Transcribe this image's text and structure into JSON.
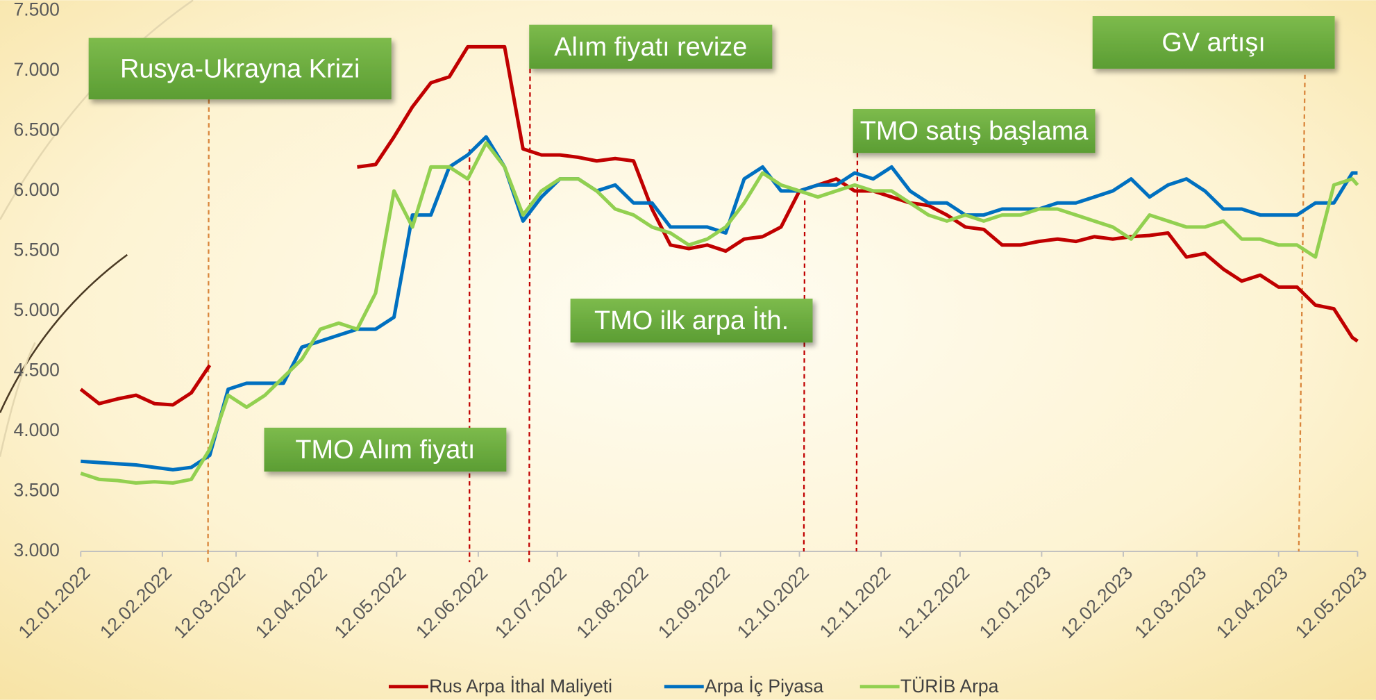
{
  "chart_data": {
    "type": "line",
    "x": [
      "12.01.2022",
      "19.01.2022",
      "26.01.2022",
      "02.02.2022",
      "09.02.2022",
      "16.02.2022",
      "23.02.2022",
      "02.03.2022",
      "09.03.2022",
      "16.03.2022",
      "23.03.2022",
      "30.03.2022",
      "06.04.2022",
      "13.04.2022",
      "20.04.2022",
      "27.04.2022",
      "04.05.2022",
      "11.05.2022",
      "18.05.2022",
      "25.05.2022",
      "01.06.2022",
      "08.06.2022",
      "15.06.2022",
      "22.06.2022",
      "29.06.2022",
      "06.07.2022",
      "13.07.2022",
      "20.07.2022",
      "27.07.2022",
      "03.08.2022",
      "10.08.2022",
      "17.08.2022",
      "24.08.2022",
      "31.08.2022",
      "07.09.2022",
      "14.09.2022",
      "21.09.2022",
      "28.09.2022",
      "05.10.2022",
      "12.10.2022",
      "19.10.2022",
      "26.10.2022",
      "02.11.2022",
      "09.11.2022",
      "16.11.2022",
      "23.11.2022",
      "30.11.2022",
      "07.12.2022",
      "14.12.2022",
      "21.12.2022",
      "28.12.2022",
      "04.01.2023",
      "11.01.2023",
      "18.01.2023",
      "25.01.2023",
      "01.02.2023",
      "08.02.2023",
      "15.02.2023",
      "22.02.2023",
      "01.03.2023",
      "08.03.2023",
      "15.03.2023",
      "22.03.2023",
      "29.03.2023",
      "05.04.2023",
      "12.04.2023",
      "19.04.2023",
      "26.04.2023",
      "03.05.2023",
      "10.05.2023",
      "12.05.2023"
    ],
    "series": [
      {
        "name": "Rus Arpa İthal Maliyeti",
        "color": "#c00000",
        "values": [
          4350,
          4230,
          4270,
          4300,
          4230,
          4220,
          4320,
          4550,
          null,
          null,
          null,
          null,
          null,
          null,
          null,
          6200,
          6220,
          6450,
          6700,
          6900,
          6950,
          7200,
          7200,
          7200,
          6350,
          6300,
          6300,
          6280,
          6250,
          6270,
          6250,
          5850,
          5550,
          5520,
          5550,
          5500,
          5600,
          5620,
          5700,
          6000,
          6050,
          6100,
          6000,
          6000,
          5950,
          5900,
          5880,
          5800,
          5700,
          5680,
          5550,
          5550,
          5580,
          5600,
          5580,
          5620,
          5600,
          5620,
          5630,
          5650,
          5450,
          5480,
          5350,
          5250,
          5300,
          5200,
          5200,
          5050,
          5020,
          4780,
          4750
        ]
      },
      {
        "name": "Arpa İç Piyasa",
        "color": "#0070c0",
        "values": [
          3750,
          3740,
          3730,
          3720,
          3700,
          3680,
          3700,
          3800,
          4350,
          4400,
          4400,
          4400,
          4700,
          4750,
          4800,
          4850,
          4850,
          4950,
          5800,
          5800,
          6200,
          6300,
          6450,
          6200,
          5750,
          5950,
          6100,
          6100,
          6000,
          6050,
          5900,
          5900,
          5700,
          5700,
          5700,
          5650,
          6100,
          6200,
          6000,
          6000,
          6050,
          6050,
          6150,
          6100,
          6200,
          6000,
          5900,
          5900,
          5800,
          5800,
          5850,
          5850,
          5850,
          5900,
          5900,
          5950,
          6000,
          6100,
          5950,
          6050,
          6100,
          6000,
          5850,
          5850,
          5800,
          5800,
          5800,
          5900,
          5900,
          6150,
          6150
        ]
      },
      {
        "name": "TÜRİB Arpa",
        "color": "#92d050",
        "values": [
          3650,
          3600,
          3590,
          3570,
          3580,
          3570,
          3600,
          3850,
          4300,
          4200,
          4300,
          4450,
          4600,
          4850,
          4900,
          4850,
          5150,
          6000,
          5700,
          6200,
          6200,
          6100,
          6400,
          6200,
          5800,
          6000,
          6100,
          6100,
          6000,
          5850,
          5800,
          5700,
          5650,
          5550,
          5600,
          5700,
          5900,
          6150,
          6050,
          6000,
          5950,
          6000,
          6050,
          6000,
          6000,
          5900,
          5800,
          5750,
          5800,
          5750,
          5800,
          5800,
          5850,
          5850,
          5800,
          5750,
          5700,
          5600,
          5800,
          5750,
          5700,
          5700,
          5750,
          5600,
          5600,
          5550,
          5550,
          5450,
          6050,
          6100,
          6050
        ]
      }
    ],
    "xlim": [
      "12.01.2022",
      "12.05.2023"
    ],
    "xticks": [
      "12.01.2022",
      "12.02.2022",
      "12.03.2022",
      "12.04.2022",
      "12.05.2022",
      "12.06.2022",
      "12.07.2022",
      "12.08.2022",
      "12.09.2022",
      "12.10.2022",
      "12.11.2022",
      "12.12.2022",
      "12.01.2023",
      "12.02.2023",
      "12.03.2023",
      "12.04.2023",
      "12.05.2023"
    ],
    "ylim": [
      3000,
      7500
    ],
    "yticks": [
      {
        "value": 3000,
        "label": "3.000"
      },
      {
        "value": 3500,
        "label": "3.500"
      },
      {
        "value": 4000,
        "label": "4.000"
      },
      {
        "value": 4500,
        "label": "4.500"
      },
      {
        "value": 5000,
        "label": "5.000"
      },
      {
        "value": 5500,
        "label": "5.500"
      },
      {
        "value": 6000,
        "label": "6.000"
      },
      {
        "value": 6500,
        "label": "6.500"
      },
      {
        "value": 7000,
        "label": "7.000"
      },
      {
        "value": 7500,
        "label": "7.500"
      }
    ],
    "annotations": [
      "Rusya-Ukrayna Krizi",
      "Alım fiyatı revize",
      "TMO satış başlama",
      "GV artışı",
      "TMO ilk arpa İth.",
      "TMO Alım fiyatı"
    ],
    "legend": "bottom"
  }
}
